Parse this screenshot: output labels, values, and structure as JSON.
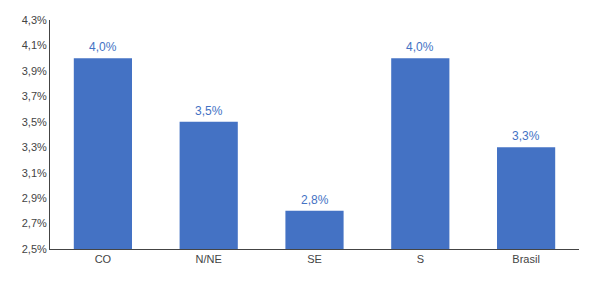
{
  "chart_data": {
    "type": "bar",
    "categories": [
      "CO",
      "N/NE",
      "SE",
      "S",
      "Brasil"
    ],
    "values": [
      4.0,
      3.5,
      2.8,
      4.0,
      3.3
    ],
    "value_labels": [
      "4,0%",
      "3,5%",
      "2,8%",
      "4,0%",
      "3,3%"
    ],
    "color": "#4472C4",
    "ylim": [
      2.5,
      4.3
    ],
    "yticks": [
      {
        "value": 2.5,
        "label": "2,5%"
      },
      {
        "value": 2.7,
        "label": "2,7%"
      },
      {
        "value": 2.9,
        "label": "2,9%"
      },
      {
        "value": 3.1,
        "label": "3,1%"
      },
      {
        "value": 3.3,
        "label": "3,3%"
      },
      {
        "value": 3.5,
        "label": "3,5%"
      },
      {
        "value": 3.7,
        "label": "3,7%"
      },
      {
        "value": 3.9,
        "label": "3,9%"
      },
      {
        "value": 4.1,
        "label": "4,1%"
      },
      {
        "value": 4.3,
        "label": "4,3%"
      }
    ],
    "grid": false,
    "data_labels": true
  }
}
